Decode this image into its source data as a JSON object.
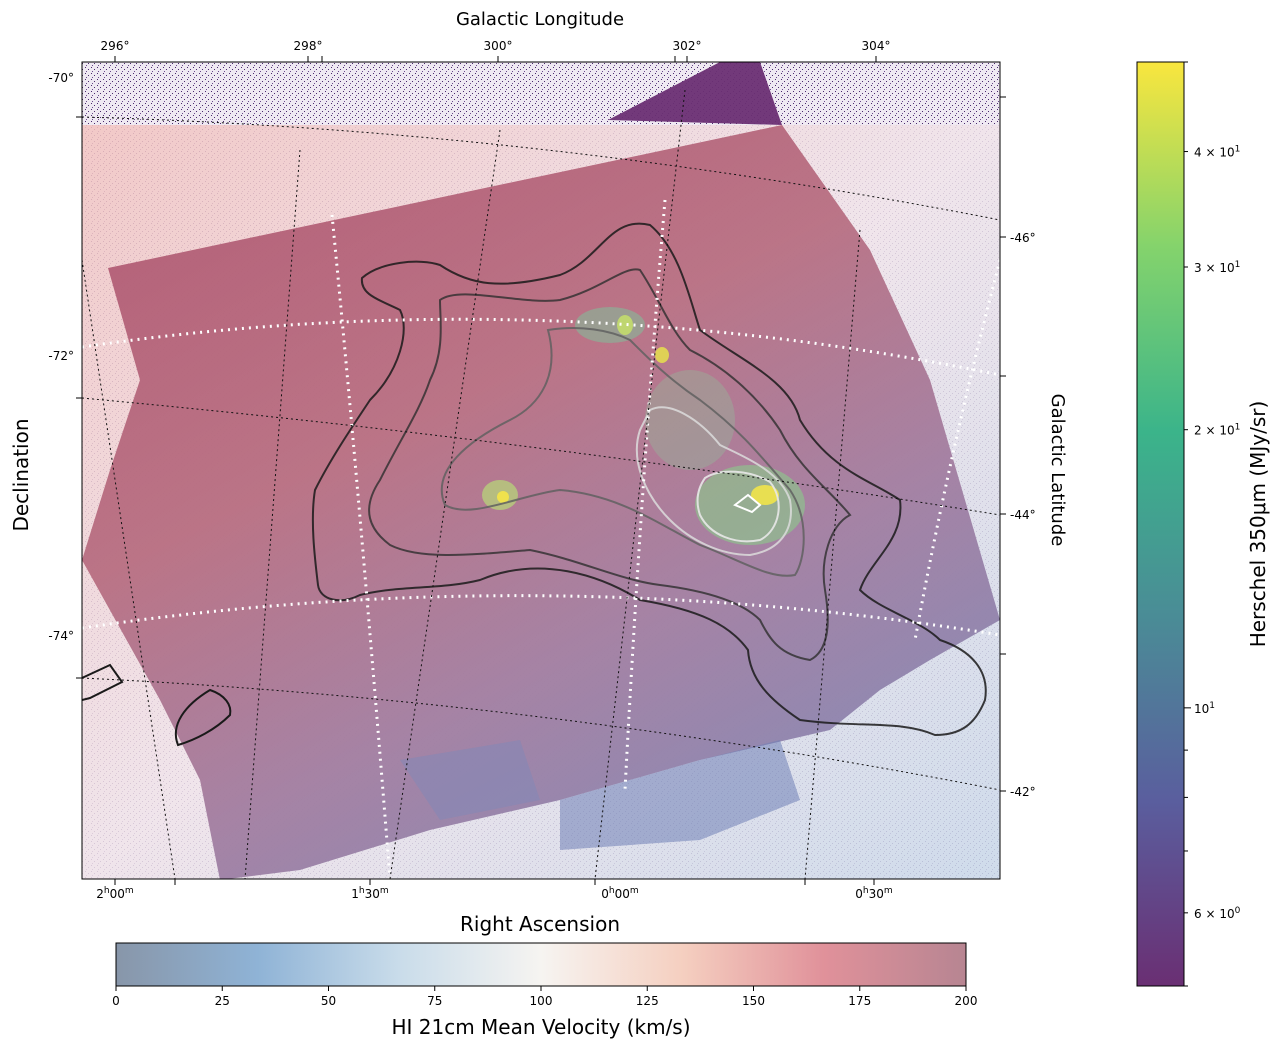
{
  "chart_data": {
    "type": "heatmap",
    "title": "",
    "axes": {
      "bottom_label": "Right Ascension",
      "left_label": "Declination",
      "top_label": "Galactic Longitude",
      "right_label": "Galactic Latitude",
      "ra_ticks": [
        "2h00m",
        "1h30m",
        "0h00m",
        "0h30m"
      ],
      "ra_ticks_display": [
        {
          "h": "2",
          "m": "00"
        },
        {
          "h": "1",
          "m": "30"
        },
        {
          "h": "0",
          "m": "00"
        },
        {
          "h": "0",
          "m": "30"
        }
      ],
      "dec_ticks": [
        "-70°",
        "-72°",
        "-74°"
      ],
      "glon_ticks": [
        "296°",
        "298°",
        "300°",
        "302°",
        "304°"
      ],
      "glat_ticks": [
        "-46°",
        "-44°",
        "-42°"
      ]
    },
    "colorbar_velocity": {
      "label": "HI 21cm Mean Velocity (km/s)",
      "range": [
        0,
        200
      ],
      "ticks": [
        0,
        25,
        50,
        75,
        100,
        125,
        150,
        175,
        200
      ],
      "colormap": "RdBu_r (semi-transparent)"
    },
    "colorbar_herschel": {
      "label": "Herschel 350μm (MJy/sr)",
      "scale": "log",
      "range": [
        5,
        50
      ],
      "labeled_ticks": [
        {
          "value": 6,
          "mant": "6",
          "exp": "0"
        },
        {
          "value": 10,
          "mant": "",
          "exp": "1"
        },
        {
          "value": 20,
          "mant": "2",
          "exp": "1"
        },
        {
          "value": 30,
          "mant": "3",
          "exp": "1"
        },
        {
          "value": 40,
          "mant": "4",
          "exp": "1"
        }
      ],
      "colormap": "viridis"
    },
    "colors": {
      "velocity_gradient": [
        "#8896a9",
        "#8fb3d6",
        "#c9dcea",
        "#f6f4f1",
        "#f5cfc0",
        "#e0919a",
        "#b78592"
      ],
      "herschel_gradient": [
        "#6a2f73",
        "#5a5e9e",
        "#4a8c96",
        "#3bb48a",
        "#84d36c",
        "#f9e63e"
      ],
      "contour_dark": "#1a1a1a",
      "contour_mid": "#505050",
      "contour_light": "#dcdcdc"
    }
  }
}
